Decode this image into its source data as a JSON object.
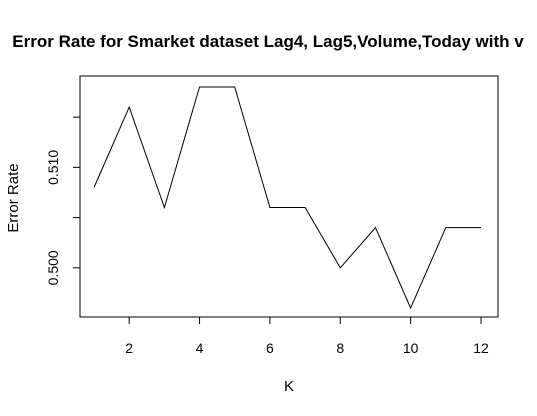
{
  "chart_data": {
    "type": "line",
    "title": "Error Rate for Smarket dataset Lag4, Lag5,Volume,Today with v",
    "xlabel": "K",
    "ylabel": "Error Rate",
    "x": [
      1,
      2,
      3,
      4,
      5,
      6,
      7,
      8,
      9,
      10,
      11,
      12
    ],
    "y": [
      0.508,
      0.516,
      0.506,
      0.518,
      0.518,
      0.506,
      0.506,
      0.5,
      0.504,
      0.496,
      0.504,
      0.504
    ],
    "xlim": [
      1,
      12
    ],
    "ylim": [
      0.496,
      0.518
    ],
    "x_ticks": [
      2,
      4,
      6,
      8,
      10,
      12
    ],
    "x_tick_labels": [
      "2",
      "4",
      "6",
      "8",
      "10",
      "12"
    ],
    "y_ticks": [
      0.5,
      0.505,
      0.51,
      0.515
    ],
    "y_tick_labels": [
      "0.500",
      "",
      "0.510",
      ""
    ],
    "grid": false,
    "legend": "none",
    "line_color": "#000000"
  }
}
